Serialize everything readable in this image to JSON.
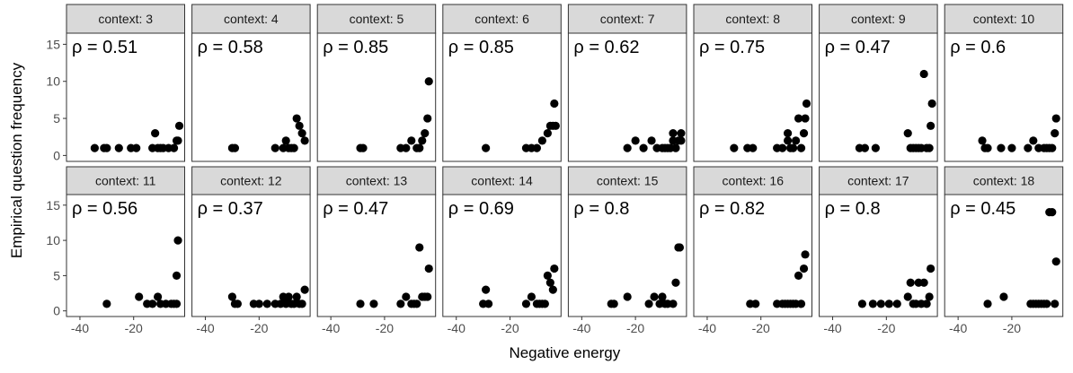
{
  "chart_data": {
    "type": "scatter",
    "xlabel": "Negative energy",
    "ylabel": "Empirical question frequency",
    "xlim": [
      -45,
      -1
    ],
    "ylim": [
      -0.8,
      16.5
    ],
    "xticks": [
      -40,
      -20
    ],
    "xtick_labels": [
      "-40",
      "-20"
    ],
    "yticks": [
      0,
      5,
      10,
      15
    ],
    "ytick_labels": [
      "0",
      "5",
      "10",
      "15"
    ],
    "grid": false,
    "point_color": "#000000",
    "panel_border_color": "#333333",
    "strip_fill": "#d9d9d9",
    "panels": [
      {
        "label": "context: 3",
        "rho": "ρ = 0.51",
        "points": [
          [
            -34.5,
            1
          ],
          [
            -31,
            1
          ],
          [
            -30,
            1
          ],
          [
            -25.5,
            1
          ],
          [
            -21,
            1
          ],
          [
            -19,
            1
          ],
          [
            -13,
            1
          ],
          [
            -12,
            3
          ],
          [
            -11,
            1
          ],
          [
            -10,
            1
          ],
          [
            -9,
            1
          ],
          [
            -7,
            1
          ],
          [
            -5,
            1
          ],
          [
            -4,
            2
          ],
          [
            -3.5,
            2
          ],
          [
            -3,
            4
          ]
        ]
      },
      {
        "label": "context: 4",
        "rho": "ρ = 0.58",
        "points": [
          [
            -30,
            1
          ],
          [
            -29,
            1
          ],
          [
            -14,
            1
          ],
          [
            -11,
            1
          ],
          [
            -10,
            2
          ],
          [
            -9,
            1
          ],
          [
            -8,
            1
          ],
          [
            -7,
            1
          ],
          [
            -6,
            5
          ],
          [
            -5,
            4
          ],
          [
            -4,
            3
          ],
          [
            -3,
            2
          ]
        ]
      },
      {
        "label": "context: 5",
        "rho": "ρ = 0.85",
        "points": [
          [
            -29,
            1
          ],
          [
            -28,
            1
          ],
          [
            -14,
            1
          ],
          [
            -12,
            1
          ],
          [
            -10,
            2
          ],
          [
            -8,
            1
          ],
          [
            -7,
            1
          ],
          [
            -6,
            2
          ],
          [
            -5,
            3
          ],
          [
            -4,
            5
          ],
          [
            -3.5,
            10
          ]
        ]
      },
      {
        "label": "context: 6",
        "rho": "ρ = 0.85",
        "points": [
          [
            -29,
            1
          ],
          [
            -14,
            1
          ],
          [
            -12,
            1
          ],
          [
            -10,
            1
          ],
          [
            -8,
            2
          ],
          [
            -6,
            3
          ],
          [
            -5,
            4
          ],
          [
            -4,
            4
          ],
          [
            -3,
            4
          ],
          [
            -3.5,
            7
          ]
        ]
      },
      {
        "label": "context: 7",
        "rho": "ρ = 0.62",
        "points": [
          [
            -23,
            1
          ],
          [
            -20,
            2
          ],
          [
            -17,
            1
          ],
          [
            -14,
            2
          ],
          [
            -12,
            1
          ],
          [
            -10,
            1
          ],
          [
            -9,
            1
          ],
          [
            -8,
            1
          ],
          [
            -7,
            1
          ],
          [
            -6,
            2
          ],
          [
            -6,
            3
          ],
          [
            -5,
            1
          ],
          [
            -4,
            2
          ],
          [
            -3,
            3
          ],
          [
            -3,
            2
          ]
        ]
      },
      {
        "label": "context: 8",
        "rho": "ρ = 0.75",
        "points": [
          [
            -30,
            1
          ],
          [
            -25,
            1
          ],
          [
            -23,
            1
          ],
          [
            -14,
            1
          ],
          [
            -12,
            1
          ],
          [
            -10,
            2
          ],
          [
            -10,
            3
          ],
          [
            -9,
            1
          ],
          [
            -8,
            1
          ],
          [
            -7,
            2
          ],
          [
            -6,
            5
          ],
          [
            -5,
            1
          ],
          [
            -4,
            3
          ],
          [
            -3.5,
            5
          ],
          [
            -3,
            7
          ]
        ]
      },
      {
        "label": "context: 9",
        "rho": "ρ = 0.47",
        "points": [
          [
            -30,
            1
          ],
          [
            -28,
            1
          ],
          [
            -24,
            1
          ],
          [
            -12,
            3
          ],
          [
            -11,
            1
          ],
          [
            -10,
            1
          ],
          [
            -9,
            1
          ],
          [
            -8,
            1
          ],
          [
            -7,
            1
          ],
          [
            -6,
            11
          ],
          [
            -5,
            1
          ],
          [
            -4,
            1
          ],
          [
            -3.5,
            4
          ],
          [
            -3,
            7
          ]
        ]
      },
      {
        "label": "context: 10",
        "rho": "ρ = 0.6",
        "points": [
          [
            -31,
            2
          ],
          [
            -30,
            1
          ],
          [
            -29,
            1
          ],
          [
            -24,
            1
          ],
          [
            -20,
            1
          ],
          [
            -14,
            1
          ],
          [
            -12,
            2
          ],
          [
            -10,
            1
          ],
          [
            -8,
            1
          ],
          [
            -7,
            1
          ],
          [
            -6,
            1
          ],
          [
            -5,
            1
          ],
          [
            -4,
            3
          ],
          [
            -3.5,
            5
          ]
        ]
      },
      {
        "label": "context: 11",
        "rho": "ρ = 0.56",
        "points": [
          [
            -30,
            1
          ],
          [
            -18,
            2
          ],
          [
            -15,
            1
          ],
          [
            -13,
            1
          ],
          [
            -11,
            2
          ],
          [
            -10,
            1
          ],
          [
            -8,
            1
          ],
          [
            -6,
            1
          ],
          [
            -5,
            1
          ],
          [
            -4,
            1
          ],
          [
            -3.5,
            10
          ],
          [
            -4,
            5
          ]
        ]
      },
      {
        "label": "context: 12",
        "rho": "ρ = 0.37",
        "points": [
          [
            -30,
            2
          ],
          [
            -29,
            1
          ],
          [
            -28,
            1
          ],
          [
            -22,
            1
          ],
          [
            -20,
            1
          ],
          [
            -17,
            1
          ],
          [
            -14,
            1
          ],
          [
            -12,
            1
          ],
          [
            -11,
            2
          ],
          [
            -10,
            1
          ],
          [
            -9,
            2
          ],
          [
            -8,
            1
          ],
          [
            -7,
            1
          ],
          [
            -6,
            2
          ],
          [
            -5,
            1
          ],
          [
            -4,
            1
          ],
          [
            -3,
            3
          ]
        ]
      },
      {
        "label": "context: 13",
        "rho": "ρ = 0.47",
        "points": [
          [
            -29,
            1
          ],
          [
            -24,
            1
          ],
          [
            -14,
            1
          ],
          [
            -12,
            2
          ],
          [
            -10,
            1
          ],
          [
            -9,
            1
          ],
          [
            -8,
            1
          ],
          [
            -7,
            9
          ],
          [
            -6,
            2
          ],
          [
            -5,
            2
          ],
          [
            -4,
            2
          ],
          [
            -3.5,
            6
          ]
        ]
      },
      {
        "label": "context: 14",
        "rho": "ρ = 0.69",
        "points": [
          [
            -30,
            1
          ],
          [
            -29,
            3
          ],
          [
            -28,
            1
          ],
          [
            -14,
            1
          ],
          [
            -12,
            2
          ],
          [
            -10,
            1
          ],
          [
            -9,
            1
          ],
          [
            -8,
            1
          ],
          [
            -7,
            1
          ],
          [
            -6,
            5
          ],
          [
            -5,
            4
          ],
          [
            -4,
            3
          ],
          [
            -3.5,
            6
          ]
        ]
      },
      {
        "label": "context: 15",
        "rho": "ρ = 0.8",
        "points": [
          [
            -29,
            1
          ],
          [
            -28,
            1
          ],
          [
            -23,
            2
          ],
          [
            -15,
            1
          ],
          [
            -13,
            2
          ],
          [
            -11,
            1
          ],
          [
            -10,
            2
          ],
          [
            -9,
            1
          ],
          [
            -8,
            1
          ],
          [
            -6,
            1
          ],
          [
            -5,
            4
          ],
          [
            -4,
            9
          ],
          [
            -3.5,
            9
          ]
        ]
      },
      {
        "label": "context: 16",
        "rho": "ρ = 0.82",
        "points": [
          [
            -24,
            1
          ],
          [
            -22,
            1
          ],
          [
            -14,
            1
          ],
          [
            -12,
            1
          ],
          [
            -11,
            1
          ],
          [
            -10,
            1
          ],
          [
            -9,
            1
          ],
          [
            -8,
            1
          ],
          [
            -7,
            1
          ],
          [
            -6,
            5
          ],
          [
            -5,
            1
          ],
          [
            -4,
            6
          ],
          [
            -3.5,
            8
          ]
        ]
      },
      {
        "label": "context: 17",
        "rho": "ρ = 0.8",
        "points": [
          [
            -29,
            1
          ],
          [
            -25,
            1
          ],
          [
            -22,
            1
          ],
          [
            -19,
            1
          ],
          [
            -16,
            1
          ],
          [
            -12,
            2
          ],
          [
            -11,
            4
          ],
          [
            -10,
            1
          ],
          [
            -9,
            1
          ],
          [
            -8,
            4
          ],
          [
            -7,
            1
          ],
          [
            -6,
            4
          ],
          [
            -5,
            1
          ],
          [
            -4,
            2
          ],
          [
            -3.5,
            6
          ]
        ]
      },
      {
        "label": "context: 18",
        "rho": "ρ = 0.45",
        "points": [
          [
            -29,
            1
          ],
          [
            -23,
            2
          ],
          [
            -13,
            1
          ],
          [
            -12,
            1
          ],
          [
            -11,
            1
          ],
          [
            -10,
            1
          ],
          [
            -9,
            1
          ],
          [
            -8,
            1
          ],
          [
            -7,
            1
          ],
          [
            -6,
            14
          ],
          [
            -5,
            14
          ],
          [
            -4,
            1
          ],
          [
            -3.5,
            7
          ]
        ]
      }
    ]
  }
}
